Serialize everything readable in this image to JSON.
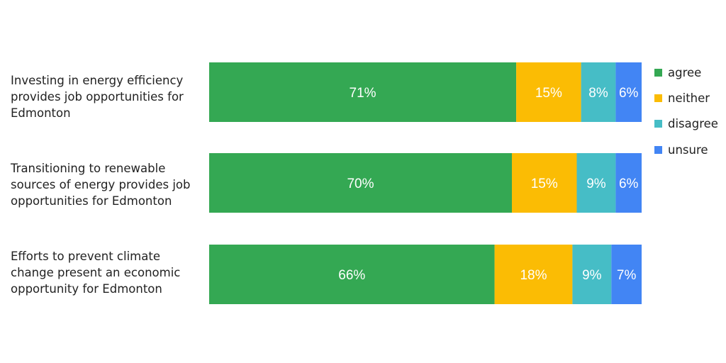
{
  "chart_data": {
    "type": "bar",
    "orientation": "horizontal",
    "stacked": true,
    "categories": [
      "Investing in energy efficiency\nprovides job opportunities for\nEdmonton",
      "Transitioning to renewable\nsources of energy provides job\nopportunities for Edmonton",
      "Efforts to prevent climate\nchange present an economic\nopportunity for Edmonton"
    ],
    "series": [
      {
        "name": "agree",
        "color": "#34A853",
        "values": [
          71,
          70,
          66
        ],
        "labels": [
          "71%",
          "70%",
          "66%"
        ]
      },
      {
        "name": "neither",
        "color": "#FBBC04",
        "values": [
          15,
          15,
          18
        ],
        "labels": [
          "15%",
          "15%",
          "18%"
        ]
      },
      {
        "name": "disagree",
        "color": "#46BDC6",
        "values": [
          8,
          9,
          9
        ],
        "labels": [
          "8%",
          "9%",
          "9%"
        ]
      },
      {
        "name": "unsure",
        "color": "#4285F4",
        "values": [
          6,
          6,
          7
        ],
        "labels": [
          "6%",
          "6%",
          "7%"
        ]
      }
    ],
    "xlim": [
      0,
      100
    ],
    "grid": false,
    "legend_position": "right"
  }
}
